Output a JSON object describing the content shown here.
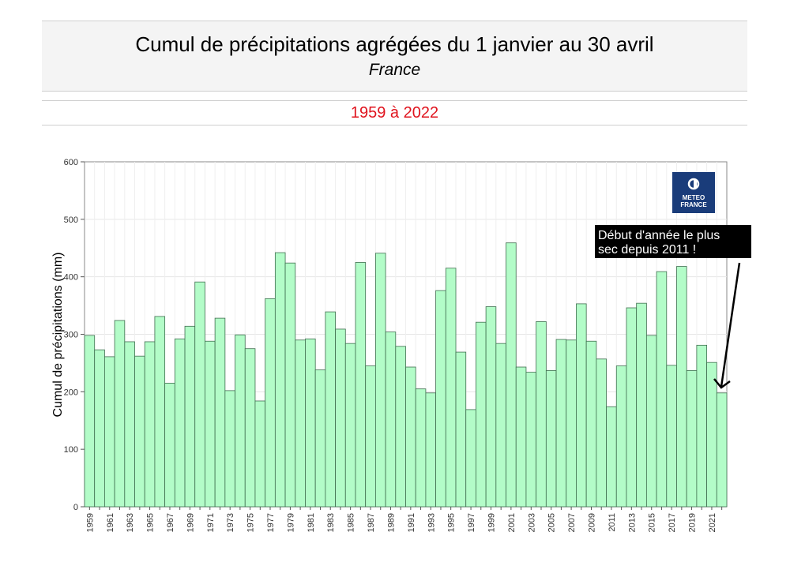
{
  "header": {
    "title": "Cumul de précipitations agrégées du 1 janvier au 30 avril",
    "subtitle": "France"
  },
  "period": {
    "label": "1959 à 2022",
    "color": "#e0141e"
  },
  "logo": {
    "line1": "METEO",
    "line2": "FRANCE",
    "color": "#1a3c7a"
  },
  "annotation": {
    "line1": "Début d'année le plus",
    "line2": "sec depuis 2011 !"
  },
  "colors": {
    "bar_fill": "#b3fcc8",
    "bar_stroke": "#3f6e4f",
    "grid": "#e6e6e6"
  },
  "chart_data": {
    "type": "bar",
    "ylabel": "Cumul de précipitations (mm)",
    "ylim": [
      0,
      600
    ],
    "yticks": [
      0,
      100,
      200,
      300,
      400,
      500,
      600
    ],
    "grid": true,
    "categories": [
      1959,
      1960,
      1961,
      1962,
      1963,
      1964,
      1965,
      1966,
      1967,
      1968,
      1969,
      1970,
      1971,
      1972,
      1973,
      1974,
      1975,
      1976,
      1977,
      1978,
      1979,
      1980,
      1981,
      1982,
      1983,
      1984,
      1985,
      1986,
      1987,
      1988,
      1989,
      1990,
      1991,
      1992,
      1993,
      1994,
      1995,
      1996,
      1997,
      1998,
      1999,
      2000,
      2001,
      2002,
      2003,
      2004,
      2005,
      2006,
      2007,
      2008,
      2009,
      2010,
      2011,
      2012,
      2013,
      2014,
      2015,
      2016,
      2017,
      2018,
      2019,
      2020,
      2021,
      2022
    ],
    "tick_labels": [
      "1959",
      "1961",
      "1963",
      "1965",
      "1967",
      "1969",
      "1971",
      "1973",
      "1975",
      "1977",
      "1979",
      "1981",
      "1983",
      "1985",
      "1987",
      "1989",
      "1991",
      "1993",
      "1995",
      "1997",
      "1999",
      "2001",
      "2003",
      "2005",
      "2007",
      "2009",
      "2011",
      "2013",
      "2015",
      "2017",
      "2019",
      "2021"
    ],
    "values": [
      298,
      273,
      261,
      324,
      287,
      262,
      287,
      331,
      215,
      292,
      314,
      391,
      288,
      328,
      202,
      299,
      275,
      184,
      362,
      442,
      424,
      290,
      292,
      238,
      339,
      309,
      284,
      425,
      245,
      441,
      304,
      279,
      243,
      205,
      198,
      376,
      415,
      269,
      169,
      321,
      348,
      284,
      459,
      243,
      234,
      322,
      237,
      291,
      290,
      353,
      288,
      257,
      174,
      245,
      346,
      354,
      298,
      409,
      246,
      418,
      237,
      281,
      251,
      198
    ]
  }
}
